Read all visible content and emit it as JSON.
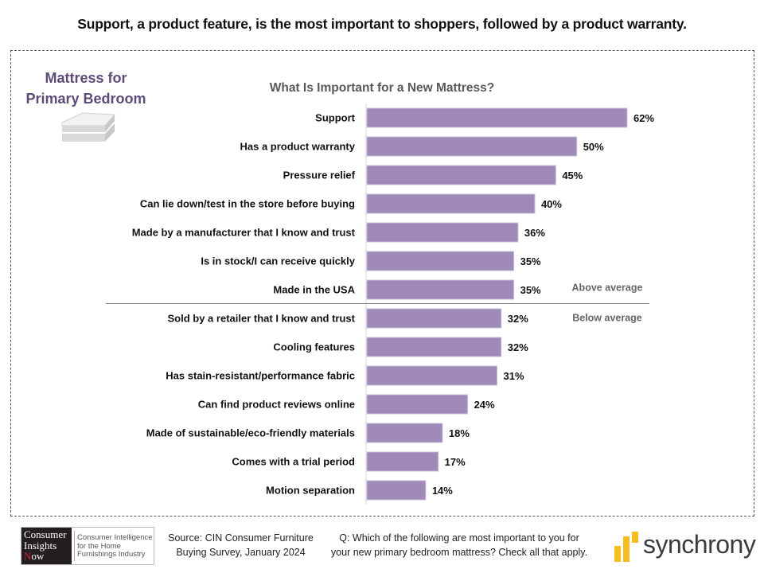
{
  "headline": "Support, a product feature, is the most important to shoppers, followed by a product warranty.",
  "segment": {
    "title_line1": "Mattress for",
    "title_line2": "Primary Bedroom",
    "icon": "mattress-icon"
  },
  "colors": {
    "bar": "#a08ab8",
    "segment_title": "#5d4c78",
    "divider": "#7f7f7f",
    "synchrony_yellow": "#f5bd1f"
  },
  "chart_data": {
    "type": "bar",
    "orientation": "horizontal",
    "title": "What Is Important for a New Mattress?",
    "xlabel": "",
    "ylabel": "",
    "xlim": [
      0,
      62
    ],
    "grid": false,
    "value_format": "percent",
    "categories": [
      "Support",
      "Has a product warranty",
      "Pressure relief",
      "Can lie down/test in the store before buying",
      "Made by a manufacturer that I know and trust",
      "Is in stock/I can receive quickly",
      "Made in the USA",
      "Sold by a retailer that I know and trust",
      "Cooling features",
      "Has stain-resistant/performance fabric",
      "Can find product reviews online",
      "Made of sustainable/eco-friendly materials",
      "Comes with a trial period",
      "Motion separation"
    ],
    "values": [
      62,
      50,
      45,
      40,
      36,
      35,
      35,
      32,
      32,
      31,
      24,
      18,
      17,
      14
    ],
    "value_labels": [
      "62%",
      "50%",
      "45%",
      "40%",
      "36%",
      "35%",
      "35%",
      "32%",
      "32%",
      "31%",
      "24%",
      "18%",
      "17%",
      "14%"
    ],
    "annotations": {
      "divider_after_index": 6,
      "above_label": "Above average",
      "below_label": "Below average"
    }
  },
  "footer": {
    "cin_logo": {
      "line1": "Consumer",
      "line2": "Insights",
      "line3_first": "N",
      "line3_rest": "ow",
      "tagline1": "Consumer Intelligence",
      "tagline2": "for the Home",
      "tagline3": "Furnishings Industry"
    },
    "source_line1": "Source: CIN Consumer Furniture",
    "source_line2": "Buying Survey, January 2024",
    "question_line1": "Q: Which of the following are most important to you for",
    "question_line2": "your new primary bedroom mattress? Check all that apply.",
    "brand": "synchrony"
  }
}
